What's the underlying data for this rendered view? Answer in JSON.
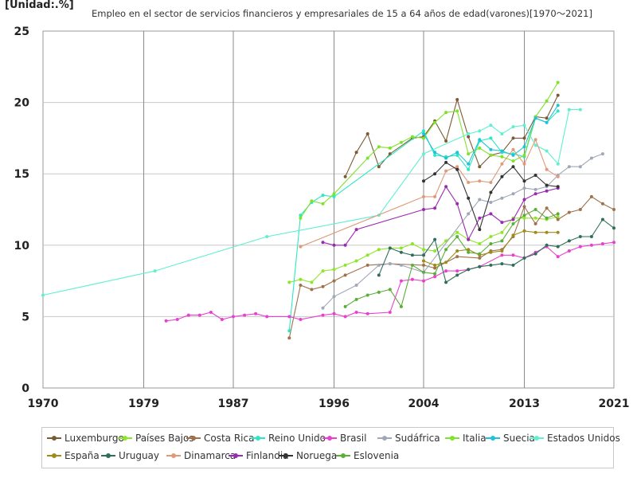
{
  "header": {
    "unit": "[Unidad:.%]",
    "title": "Empleo en el sector de servicios financieros y empresariales de 15 a 64 años de edad(varones)[1970～2021]"
  },
  "chart_data": {
    "type": "line",
    "title": "Empleo en el sector de servicios financieros y empresariales de 15 a 64 años de edad(varones)[1970～2021]",
    "unit": "[Unidad:.%]",
    "xlim": [
      1970,
      2021
    ],
    "ylim": [
      0,
      25
    ],
    "xticks": [
      1970,
      1979,
      1987,
      1996,
      2004,
      2013,
      2021
    ],
    "yticks": [
      0,
      5,
      10,
      15,
      20,
      25
    ],
    "grid": true,
    "legend_position": "bottom",
    "series": [
      {
        "name": "Luxemburgo",
        "color": "#7b5a34",
        "points": [
          [
            1997,
            14.8
          ],
          [
            1998,
            16.5
          ],
          [
            1999,
            17.8
          ],
          [
            2000,
            15.5
          ],
          [
            2001,
            16.4
          ],
          [
            2003,
            17.5
          ],
          [
            2004,
            17.6
          ],
          [
            2005,
            18.7
          ],
          [
            2006,
            17.3
          ],
          [
            2007,
            20.2
          ],
          [
            2008,
            17.6
          ],
          [
            2009,
            15.5
          ],
          [
            2010,
            16.3
          ],
          [
            2011,
            16.5
          ],
          [
            2012,
            17.5
          ],
          [
            2013,
            17.5
          ],
          [
            2014,
            19.0
          ],
          [
            2015,
            18.9
          ],
          [
            2016,
            20.5
          ]
        ]
      },
      {
        "name": "Países Bajos",
        "color": "#8ee62b",
        "points": [
          [
            1992,
            7.4
          ],
          [
            1993,
            7.6
          ],
          [
            1994,
            7.4
          ],
          [
            1995,
            8.2
          ],
          [
            1996,
            8.3
          ],
          [
            1997,
            8.6
          ],
          [
            1998,
            8.9
          ],
          [
            1999,
            9.3
          ],
          [
            2000,
            9.7
          ],
          [
            2001,
            9.8
          ],
          [
            2002,
            9.8
          ],
          [
            2003,
            10.1
          ],
          [
            2004,
            9.7
          ],
          [
            2005,
            9.6
          ],
          [
            2006,
            10.3
          ],
          [
            2007,
            10.9
          ],
          [
            2008,
            10.4
          ],
          [
            2009,
            10.1
          ],
          [
            2010,
            10.6
          ],
          [
            2011,
            10.9
          ],
          [
            2012,
            11.9
          ],
          [
            2013,
            11.9
          ],
          [
            2014,
            11.9
          ],
          [
            2015,
            11.8
          ],
          [
            2016,
            12.0
          ]
        ]
      },
      {
        "name": "Costa Rica",
        "color": "#a0714a",
        "points": [
          [
            1992,
            3.5
          ],
          [
            1993,
            7.2
          ],
          [
            1994,
            6.9
          ],
          [
            1995,
            7.1
          ],
          [
            1996,
            7.5
          ],
          [
            1997,
            7.9
          ],
          [
            1999,
            8.6
          ],
          [
            2001,
            8.7
          ],
          [
            2004,
            8.6
          ],
          [
            2005,
            8.4
          ],
          [
            2007,
            9.2
          ],
          [
            2009,
            9.1
          ],
          [
            2010,
            9.6
          ],
          [
            2011,
            9.7
          ],
          [
            2012,
            10.6
          ],
          [
            2013,
            12.7
          ],
          [
            2014,
            11.5
          ],
          [
            2015,
            12.6
          ],
          [
            2016,
            11.8
          ],
          [
            2017,
            12.3
          ],
          [
            2018,
            12.5
          ],
          [
            2019,
            13.4
          ],
          [
            2020,
            12.9
          ],
          [
            2021,
            12.5
          ]
        ]
      },
      {
        "name": "Reino Unido",
        "color": "#2be8c4",
        "points": [
          [
            1992,
            4.0
          ],
          [
            1993,
            12.1
          ],
          [
            1994,
            13.0
          ],
          [
            1995,
            13.5
          ],
          [
            1996,
            13.4
          ],
          [
            2004,
            18.0
          ],
          [
            2005,
            16.3
          ],
          [
            2006,
            16.2
          ],
          [
            2007,
            16.3
          ],
          [
            2008,
            15.3
          ],
          [
            2009,
            17.3
          ],
          [
            2010,
            17.5
          ],
          [
            2011,
            16.5
          ],
          [
            2012,
            16.4
          ],
          [
            2013,
            16.2
          ],
          [
            2014,
            18.9
          ],
          [
            2015,
            18.6
          ],
          [
            2016,
            19.4
          ]
        ]
      },
      {
        "name": "Brasil",
        "color": "#ea3fd0",
        "points": [
          [
            1981,
            4.7
          ],
          [
            1982,
            4.8
          ],
          [
            1983,
            5.1
          ],
          [
            1984,
            5.1
          ],
          [
            1985,
            5.3
          ],
          [
            1986,
            4.8
          ],
          [
            1987,
            5.0
          ],
          [
            1988,
            5.1
          ],
          [
            1989,
            5.2
          ],
          [
            1990,
            5.0
          ],
          [
            1992,
            5.0
          ],
          [
            1993,
            4.8
          ],
          [
            1995,
            5.1
          ],
          [
            1996,
            5.2
          ],
          [
            1997,
            5.0
          ],
          [
            1998,
            5.3
          ],
          [
            1999,
            5.2
          ],
          [
            2001,
            5.3
          ],
          [
            2002,
            7.5
          ],
          [
            2003,
            7.6
          ],
          [
            2004,
            7.5
          ],
          [
            2005,
            7.8
          ],
          [
            2006,
            8.2
          ],
          [
            2007,
            8.2
          ],
          [
            2008,
            8.3
          ],
          [
            2009,
            8.5
          ],
          [
            2011,
            9.3
          ],
          [
            2012,
            9.3
          ],
          [
            2013,
            9.1
          ],
          [
            2014,
            9.5
          ],
          [
            2015,
            9.9
          ],
          [
            2016,
            9.2
          ],
          [
            2017,
            9.6
          ],
          [
            2018,
            9.9
          ],
          [
            2019,
            10.0
          ],
          [
            2020,
            10.1
          ],
          [
            2021,
            10.2
          ]
        ]
      },
      {
        "name": "Sudáfrica",
        "color": "#9fa8b8",
        "points": [
          [
            1995,
            5.6
          ],
          [
            1996,
            6.4
          ],
          [
            1998,
            7.2
          ],
          [
            2000,
            8.6
          ],
          [
            2001,
            8.7
          ],
          [
            2002,
            8.6
          ],
          [
            2004,
            8.1
          ],
          [
            2008,
            12.2
          ],
          [
            2009,
            13.2
          ],
          [
            2010,
            13.0
          ],
          [
            2011,
            13.3
          ],
          [
            2012,
            13.6
          ],
          [
            2013,
            14.0
          ],
          [
            2014,
            13.9
          ],
          [
            2015,
            14.1
          ],
          [
            2016,
            14.9
          ],
          [
            2017,
            15.5
          ],
          [
            2018,
            15.5
          ],
          [
            2019,
            16.1
          ],
          [
            2020,
            16.4
          ]
        ]
      },
      {
        "name": "Italia",
        "color": "#7fe22b",
        "points": [
          [
            1993,
            11.9
          ],
          [
            1994,
            13.1
          ],
          [
            1995,
            12.9
          ],
          [
            1996,
            13.6
          ],
          [
            1999,
            16.1
          ],
          [
            2000,
            16.9
          ],
          [
            2001,
            16.8
          ],
          [
            2002,
            17.2
          ],
          [
            2003,
            17.6
          ],
          [
            2004,
            17.5
          ],
          [
            2005,
            18.6
          ],
          [
            2006,
            19.3
          ],
          [
            2007,
            19.4
          ],
          [
            2008,
            16.4
          ],
          [
            2009,
            16.8
          ],
          [
            2010,
            16.3
          ],
          [
            2011,
            16.2
          ],
          [
            2012,
            15.9
          ],
          [
            2013,
            16.3
          ],
          [
            2014,
            19.0
          ],
          [
            2015,
            20.1
          ],
          [
            2016,
            21.4
          ]
        ]
      },
      {
        "name": "Suecia",
        "color": "#1fc3d6",
        "points": [
          [
            2004,
            17.8
          ],
          [
            2005,
            16.5
          ],
          [
            2006,
            16.1
          ],
          [
            2007,
            16.5
          ],
          [
            2008,
            15.7
          ],
          [
            2009,
            17.4
          ],
          [
            2010,
            16.7
          ],
          [
            2011,
            16.6
          ],
          [
            2012,
            16.3
          ],
          [
            2013,
            16.9
          ],
          [
            2014,
            18.9
          ],
          [
            2015,
            18.6
          ],
          [
            2016,
            19.8
          ]
        ]
      },
      {
        "name": "Estados Unidos",
        "color": "#5ff0cf",
        "points": [
          [
            1970,
            6.5
          ],
          [
            1980,
            8.2
          ],
          [
            1990,
            10.6
          ],
          [
            2000,
            12.1
          ],
          [
            2004,
            16.4
          ],
          [
            2008,
            17.8
          ],
          [
            2009,
            18.0
          ],
          [
            2010,
            18.4
          ],
          [
            2011,
            17.8
          ],
          [
            2012,
            18.3
          ],
          [
            2013,
            18.4
          ],
          [
            2014,
            17.0
          ],
          [
            2015,
            16.6
          ],
          [
            2016,
            15.7
          ],
          [
            2017,
            19.5
          ],
          [
            2018,
            19.5
          ]
        ]
      },
      {
        "name": "España",
        "color": "#a08a1a",
        "points": [
          [
            2004,
            8.9
          ],
          [
            2005,
            8.6
          ],
          [
            2006,
            8.8
          ],
          [
            2007,
            9.6
          ],
          [
            2008,
            9.7
          ],
          [
            2009,
            9.3
          ],
          [
            2010,
            9.5
          ],
          [
            2011,
            9.6
          ],
          [
            2012,
            10.7
          ],
          [
            2013,
            11.0
          ],
          [
            2014,
            10.9
          ],
          [
            2015,
            10.9
          ],
          [
            2016,
            10.9
          ]
        ]
      },
      {
        "name": "Uruguay",
        "color": "#2f6e5a",
        "points": [
          [
            2000,
            7.9
          ],
          [
            2001,
            9.8
          ],
          [
            2002,
            9.5
          ],
          [
            2003,
            9.3
          ],
          [
            2004,
            9.3
          ],
          [
            2005,
            10.4
          ],
          [
            2006,
            7.4
          ],
          [
            2007,
            7.9
          ],
          [
            2008,
            8.3
          ],
          [
            2009,
            8.5
          ],
          [
            2010,
            8.6
          ],
          [
            2011,
            8.7
          ],
          [
            2012,
            8.6
          ],
          [
            2013,
            9.1
          ],
          [
            2014,
            9.4
          ],
          [
            2015,
            10.0
          ],
          [
            2016,
            9.9
          ],
          [
            2017,
            10.3
          ],
          [
            2018,
            10.6
          ],
          [
            2019,
            10.6
          ],
          [
            2020,
            11.8
          ],
          [
            2021,
            11.2
          ]
        ]
      },
      {
        "name": "Dinamarca",
        "color": "#e09a7a",
        "points": [
          [
            1993,
            9.9
          ],
          [
            2004,
            13.4
          ],
          [
            2005,
            13.4
          ],
          [
            2006,
            15.2
          ],
          [
            2007,
            15.5
          ],
          [
            2008,
            14.4
          ],
          [
            2009,
            14.5
          ],
          [
            2010,
            14.4
          ],
          [
            2011,
            15.7
          ],
          [
            2012,
            16.7
          ],
          [
            2013,
            15.7
          ],
          [
            2014,
            17.4
          ],
          [
            2015,
            15.3
          ],
          [
            2016,
            14.8
          ]
        ]
      },
      {
        "name": "Finlandia",
        "color": "#9a2ab0",
        "points": [
          [
            1995,
            10.2
          ],
          [
            1996,
            10.0
          ],
          [
            1997,
            10.0
          ],
          [
            1998,
            11.1
          ],
          [
            2004,
            12.5
          ],
          [
            2005,
            12.6
          ],
          [
            2006,
            14.1
          ],
          [
            2007,
            12.9
          ],
          [
            2008,
            10.4
          ],
          [
            2009,
            11.9
          ],
          [
            2010,
            12.2
          ],
          [
            2011,
            11.6
          ],
          [
            2012,
            11.8
          ],
          [
            2013,
            13.2
          ],
          [
            2014,
            13.6
          ],
          [
            2015,
            13.8
          ],
          [
            2016,
            14.0
          ]
        ]
      },
      {
        "name": "Noruega",
        "color": "#333333",
        "points": [
          [
            2004,
            14.5
          ],
          [
            2005,
            15.0
          ],
          [
            2006,
            15.8
          ],
          [
            2007,
            15.3
          ],
          [
            2008,
            13.3
          ],
          [
            2009,
            11.1
          ],
          [
            2010,
            13.7
          ],
          [
            2011,
            14.8
          ],
          [
            2012,
            15.5
          ],
          [
            2013,
            14.5
          ],
          [
            2014,
            14.9
          ],
          [
            2015,
            14.2
          ],
          [
            2016,
            14.1
          ]
        ]
      },
      {
        "name": "Eslovenia",
        "color": "#5aae3a",
        "points": [
          [
            1997,
            5.7
          ],
          [
            1998,
            6.2
          ],
          [
            1999,
            6.5
          ],
          [
            2000,
            6.7
          ],
          [
            2001,
            6.9
          ],
          [
            2002,
            5.7
          ],
          [
            2003,
            8.6
          ],
          [
            2004,
            8.1
          ],
          [
            2005,
            8.0
          ],
          [
            2006,
            9.7
          ],
          [
            2007,
            10.6
          ],
          [
            2008,
            9.5
          ],
          [
            2009,
            9.4
          ],
          [
            2010,
            10.1
          ],
          [
            2011,
            10.3
          ],
          [
            2012,
            11.5
          ],
          [
            2013,
            12.1
          ],
          [
            2014,
            12.5
          ],
          [
            2015,
            11.9
          ],
          [
            2016,
            12.2
          ]
        ]
      }
    ]
  }
}
